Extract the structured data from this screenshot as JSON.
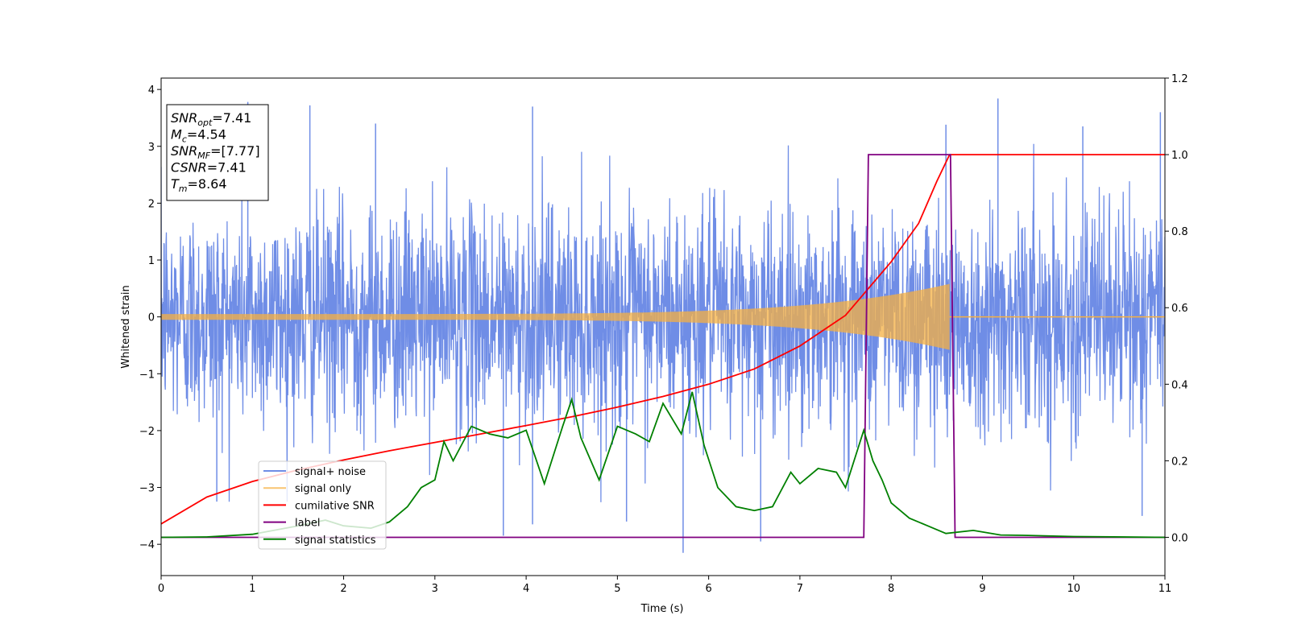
{
  "chart_data": {
    "type": "line",
    "title": "",
    "xlabel": "Time (s)",
    "ylabel": "Whitened strain",
    "ylabel_right": "",
    "xlim": [
      0,
      11
    ],
    "ylim": [
      -4.55,
      4.2
    ],
    "ylim_right": [
      -0.1,
      1.2
    ],
    "x_ticks": [
      0,
      1,
      2,
      3,
      4,
      5,
      6,
      7,
      8,
      9,
      10,
      11
    ],
    "y_ticks": [
      -4,
      -3,
      -2,
      -1,
      0,
      1,
      2,
      3,
      4
    ],
    "y_ticks_right": [
      0.0,
      0.2,
      0.4,
      0.6,
      0.8,
      1.0,
      1.2
    ],
    "grid": false,
    "legend_position": "lower-left",
    "info_box": [
      {
        "main": "SNR",
        "sub": "opt",
        "rest": "=7.41"
      },
      {
        "main": "M",
        "sub": "c",
        "rest": "=4.54"
      },
      {
        "main": "SNR",
        "sub": "MF",
        "rest": "=[7.77]"
      },
      {
        "main": "CSNR",
        "sub": "",
        "rest": "=7.41"
      },
      {
        "main": "T",
        "sub": "m",
        "rest": "=8.64"
      }
    ],
    "series": [
      {
        "name": "signal+ noise",
        "axis": "left",
        "color": "#6f8de6",
        "kind": "noise",
        "seed": 12345,
        "std": 0.95,
        "samples_per_second": 260,
        "spikes": [
          [
            0.95,
            3.78
          ],
          [
            1.63,
            3.72
          ],
          [
            4.07,
            3.7
          ],
          [
            9.17,
            3.84
          ],
          [
            10.1,
            3.35
          ],
          [
            10.95,
            3.6
          ],
          [
            8.6,
            3.38
          ],
          [
            5.72,
            -4.15
          ],
          [
            6.57,
            -3.95
          ],
          [
            3.75,
            -3.85
          ],
          [
            4.07,
            -3.65
          ],
          [
            5.1,
            -3.6
          ],
          [
            0.61,
            -3.25
          ],
          [
            10.75,
            -3.5
          ],
          [
            2.35,
            3.4
          ]
        ]
      },
      {
        "name": "signal only",
        "axis": "left",
        "color": "#f5b041",
        "kind": "chirp",
        "t_merge": 8.64,
        "amp_start": 0.05,
        "amp_end": 0.58
      },
      {
        "name": "cumilative SNR",
        "axis": "right",
        "color": "#ff0000",
        "points": [
          [
            0,
            0.035
          ],
          [
            0.5,
            0.105
          ],
          [
            1,
            0.146
          ],
          [
            1.5,
            0.176
          ],
          [
            2,
            0.202
          ],
          [
            2.5,
            0.226
          ],
          [
            3,
            0.248
          ],
          [
            3.5,
            0.27
          ],
          [
            4,
            0.292
          ],
          [
            4.5,
            0.315
          ],
          [
            5,
            0.34
          ],
          [
            5.5,
            0.368
          ],
          [
            6,
            0.4
          ],
          [
            6.5,
            0.44
          ],
          [
            7,
            0.5
          ],
          [
            7.5,
            0.58
          ],
          [
            8,
            0.72
          ],
          [
            8.3,
            0.82
          ],
          [
            8.5,
            0.93
          ],
          [
            8.64,
            1.0
          ],
          [
            11,
            1.0
          ]
        ]
      },
      {
        "name": "label",
        "axis": "right",
        "color": "#800080",
        "points": [
          [
            0,
            0.0
          ],
          [
            7.7,
            0.0
          ],
          [
            7.75,
            1.0
          ],
          [
            8.65,
            1.0
          ],
          [
            8.7,
            0.0
          ],
          [
            11,
            0.0
          ]
        ]
      },
      {
        "name": "signal statistics",
        "axis": "right",
        "color": "#008000",
        "points": [
          [
            0,
            0.0
          ],
          [
            0.5,
            0.001
          ],
          [
            1,
            0.008
          ],
          [
            1.5,
            0.03
          ],
          [
            1.8,
            0.045
          ],
          [
            2,
            0.03
          ],
          [
            2.3,
            0.024
          ],
          [
            2.5,
            0.04
          ],
          [
            2.7,
            0.08
          ],
          [
            2.85,
            0.13
          ],
          [
            3,
            0.15
          ],
          [
            3.1,
            0.25
          ],
          [
            3.2,
            0.2
          ],
          [
            3.4,
            0.29
          ],
          [
            3.6,
            0.27
          ],
          [
            3.8,
            0.26
          ],
          [
            4.0,
            0.28
          ],
          [
            4.2,
            0.14
          ],
          [
            4.4,
            0.29
          ],
          [
            4.5,
            0.36
          ],
          [
            4.6,
            0.26
          ],
          [
            4.8,
            0.15
          ],
          [
            5.0,
            0.29
          ],
          [
            5.2,
            0.27
          ],
          [
            5.35,
            0.25
          ],
          [
            5.5,
            0.35
          ],
          [
            5.7,
            0.27
          ],
          [
            5.82,
            0.38
          ],
          [
            5.95,
            0.24
          ],
          [
            6.1,
            0.13
          ],
          [
            6.3,
            0.08
          ],
          [
            6.5,
            0.07
          ],
          [
            6.7,
            0.08
          ],
          [
            6.9,
            0.17
          ],
          [
            7.0,
            0.14
          ],
          [
            7.2,
            0.18
          ],
          [
            7.4,
            0.17
          ],
          [
            7.5,
            0.13
          ],
          [
            7.7,
            0.28
          ],
          [
            7.8,
            0.2
          ],
          [
            7.9,
            0.15
          ],
          [
            8.0,
            0.09
          ],
          [
            8.2,
            0.05
          ],
          [
            8.4,
            0.03
          ],
          [
            8.6,
            0.01
          ],
          [
            8.9,
            0.018
          ],
          [
            9.2,
            0.006
          ],
          [
            9.5,
            0.005
          ],
          [
            10,
            0.002
          ],
          [
            11,
            0.0
          ]
        ]
      }
    ]
  }
}
